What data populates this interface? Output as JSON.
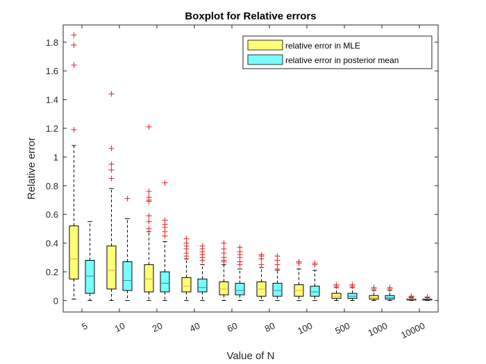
{
  "chart_data": {
    "type": "boxplot",
    "title": "Boxplot for Relative errors",
    "xlabel": "Value of N",
    "ylabel": "Relative error",
    "ylim": [
      -0.08,
      1.92
    ],
    "yticks": [
      0,
      0.2,
      0.4,
      0.6,
      0.8,
      1,
      1.2,
      1.4,
      1.6,
      1.8
    ],
    "ytick_labels": [
      "0",
      "0.2",
      "0.4",
      "0.6",
      "0.8",
      "1",
      "1.2",
      "1.4",
      "1.6",
      "1.8"
    ],
    "categories": [
      "5",
      "10",
      "20",
      "40",
      "60",
      "80",
      "100",
      "500",
      "1000",
      "10000"
    ],
    "legend_position": "top-right",
    "grid": false,
    "series": [
      {
        "name": "relative error in MLE",
        "color": "#ffff77",
        "median_color": "#e8a050",
        "boxes": [
          {
            "whisker_low": 0.01,
            "q1": 0.15,
            "median": 0.29,
            "q3": 0.52,
            "whisker_high": 1.08,
            "outliers": [
              1.19,
              1.64,
              1.78,
              1.85
            ]
          },
          {
            "whisker_low": 0.0,
            "q1": 0.08,
            "median": 0.21,
            "q3": 0.38,
            "whisker_high": 0.78,
            "outliers": [
              0.85,
              0.91,
              0.95,
              1.06,
              1.44
            ]
          },
          {
            "whisker_low": 0.0,
            "q1": 0.06,
            "median": 0.15,
            "q3": 0.25,
            "whisker_high": 0.48,
            "outliers": [
              0.5,
              0.55,
              0.59,
              0.69,
              0.7,
              0.72,
              0.76,
              1.21
            ]
          },
          {
            "whisker_low": 0.0,
            "q1": 0.06,
            "median": 0.1,
            "q3": 0.16,
            "whisker_high": 0.29,
            "outliers": [
              0.31,
              0.33,
              0.36,
              0.38,
              0.4,
              0.43
            ]
          },
          {
            "whisker_low": 0.0,
            "q1": 0.04,
            "median": 0.08,
            "q3": 0.13,
            "whisker_high": 0.25,
            "outliers": [
              0.27,
              0.28,
              0.3,
              0.33,
              0.36,
              0.4
            ]
          },
          {
            "whisker_low": 0.0,
            "q1": 0.03,
            "median": 0.08,
            "q3": 0.13,
            "whisker_high": 0.23,
            "outliers": [
              0.25,
              0.29,
              0.31,
              0.32
            ]
          },
          {
            "whisker_low": 0.0,
            "q1": 0.03,
            "median": 0.07,
            "q3": 0.11,
            "whisker_high": 0.22,
            "outliers": [
              0.26,
              0.27
            ]
          },
          {
            "whisker_low": 0.0,
            "q1": 0.015,
            "median": 0.03,
            "q3": 0.05,
            "whisker_high": 0.09,
            "outliers": [
              0.1,
              0.11
            ]
          },
          {
            "whisker_low": 0.0,
            "q1": 0.01,
            "median": 0.02,
            "q3": 0.035,
            "whisker_high": 0.07,
            "outliers": [
              0.08,
              0.09
            ]
          },
          {
            "whisker_low": 0.0,
            "q1": 0.003,
            "median": 0.006,
            "q3": 0.01,
            "whisker_high": 0.02,
            "outliers": [
              0.025,
              0.03
            ]
          }
        ]
      },
      {
        "name": "relative error in posterior mean",
        "color": "#77ffff",
        "median_color": "#4a7ab5",
        "boxes": [
          {
            "whisker_low": 0.0,
            "q1": 0.05,
            "median": 0.17,
            "q3": 0.28,
            "whisker_high": 0.55,
            "outliers": []
          },
          {
            "whisker_low": 0.0,
            "q1": 0.07,
            "median": 0.14,
            "q3": 0.27,
            "whisker_high": 0.57,
            "outliers": [
              0.71
            ]
          },
          {
            "whisker_low": 0.0,
            "q1": 0.06,
            "median": 0.12,
            "q3": 0.2,
            "whisker_high": 0.41,
            "outliers": [
              0.45,
              0.48,
              0.51,
              0.53,
              0.56,
              0.82
            ]
          },
          {
            "whisker_low": 0.0,
            "q1": 0.06,
            "median": 0.09,
            "q3": 0.15,
            "whisker_high": 0.25,
            "outliers": [
              0.28,
              0.3,
              0.32,
              0.34,
              0.36,
              0.38
            ]
          },
          {
            "whisker_low": 0.0,
            "q1": 0.04,
            "median": 0.07,
            "q3": 0.12,
            "whisker_high": 0.22,
            "outliers": [
              0.25,
              0.27,
              0.3,
              0.32,
              0.34,
              0.37
            ]
          },
          {
            "whisker_low": 0.0,
            "q1": 0.03,
            "median": 0.07,
            "q3": 0.12,
            "whisker_high": 0.21,
            "outliers": [
              0.22,
              0.25,
              0.28,
              0.31
            ]
          },
          {
            "whisker_low": 0.0,
            "q1": 0.03,
            "median": 0.06,
            "q3": 0.1,
            "whisker_high": 0.21,
            "outliers": [
              0.25,
              0.26
            ]
          },
          {
            "whisker_low": 0.0,
            "q1": 0.015,
            "median": 0.03,
            "q3": 0.05,
            "whisker_high": 0.09,
            "outliers": [
              0.1,
              0.11
            ]
          },
          {
            "whisker_low": 0.0,
            "q1": 0.01,
            "median": 0.02,
            "q3": 0.035,
            "whisker_high": 0.07,
            "outliers": [
              0.08,
              0.09
            ]
          },
          {
            "whisker_low": 0.0,
            "q1": 0.003,
            "median": 0.006,
            "q3": 0.01,
            "whisker_high": 0.02,
            "outliers": [
              0.025
            ]
          }
        ]
      }
    ]
  }
}
